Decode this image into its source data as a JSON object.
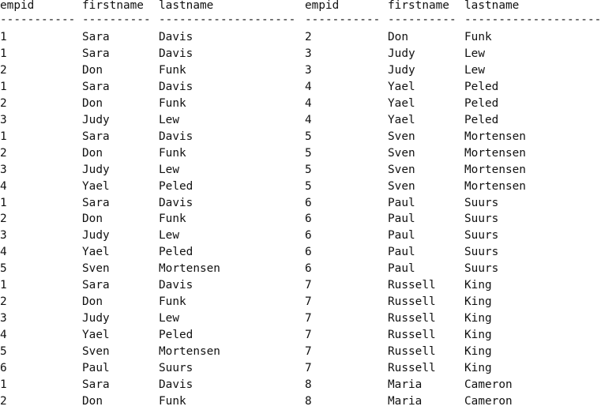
{
  "headers": [
    "empid",
    "firstname",
    "lastname",
    "empid",
    "firstname",
    "lastname"
  ],
  "separators": [
    "-----------",
    "----------",
    "--------------------",
    "-----------",
    "----------",
    "--------------------"
  ],
  "rows": [
    [
      "1",
      "Sara",
      "Davis",
      "2",
      "Don",
      "Funk"
    ],
    [
      "1",
      "Sara",
      "Davis",
      "3",
      "Judy",
      "Lew"
    ],
    [
      "2",
      "Don",
      "Funk",
      "3",
      "Judy",
      "Lew"
    ],
    [
      "1",
      "Sara",
      "Davis",
      "4",
      "Yael",
      "Peled"
    ],
    [
      "2",
      "Don",
      "Funk",
      "4",
      "Yael",
      "Peled"
    ],
    [
      "3",
      "Judy",
      "Lew",
      "4",
      "Yael",
      "Peled"
    ],
    [
      "1",
      "Sara",
      "Davis",
      "5",
      "Sven",
      "Mortensen"
    ],
    [
      "2",
      "Don",
      "Funk",
      "5",
      "Sven",
      "Mortensen"
    ],
    [
      "3",
      "Judy",
      "Lew",
      "5",
      "Sven",
      "Mortensen"
    ],
    [
      "4",
      "Yael",
      "Peled",
      "5",
      "Sven",
      "Mortensen"
    ],
    [
      "1",
      "Sara",
      "Davis",
      "6",
      "Paul",
      "Suurs"
    ],
    [
      "2",
      "Don",
      "Funk",
      "6",
      "Paul",
      "Suurs"
    ],
    [
      "3",
      "Judy",
      "Lew",
      "6",
      "Paul",
      "Suurs"
    ],
    [
      "4",
      "Yael",
      "Peled",
      "6",
      "Paul",
      "Suurs"
    ],
    [
      "5",
      "Sven",
      "Mortensen",
      "6",
      "Paul",
      "Suurs"
    ],
    [
      "1",
      "Sara",
      "Davis",
      "7",
      "Russell",
      "King"
    ],
    [
      "2",
      "Don",
      "Funk",
      "7",
      "Russell",
      "King"
    ],
    [
      "3",
      "Judy",
      "Lew",
      "7",
      "Russell",
      "King"
    ],
    [
      "4",
      "Yael",
      "Peled",
      "7",
      "Russell",
      "King"
    ],
    [
      "5",
      "Sven",
      "Mortensen",
      "7",
      "Russell",
      "King"
    ],
    [
      "6",
      "Paul",
      "Suurs",
      "7",
      "Russell",
      "King"
    ],
    [
      "1",
      "Sara",
      "Davis",
      "8",
      "Maria",
      "Cameron"
    ],
    [
      "2",
      "Don",
      "Funk",
      "8",
      "Maria",
      "Cameron"
    ]
  ]
}
